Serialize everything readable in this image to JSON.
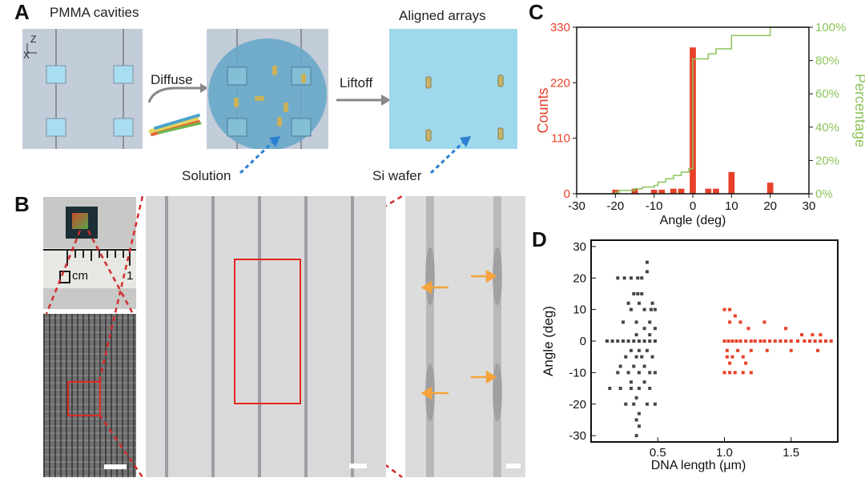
{
  "panel_a": {
    "label": "A",
    "title_left": "PMMA cavities",
    "title_right": "Aligned arrays",
    "axis_z": "Z",
    "axis_x": "X",
    "step1": "Diffuse",
    "step2": "Liftoff",
    "solution_label": "Solution",
    "wafer_label": "Si wafer"
  },
  "panel_b": {
    "label": "B",
    "ruler_unit": "cm",
    "ruler_mark": "1"
  },
  "panel_c": {
    "label": "C"
  },
  "panel_d": {
    "label": "D"
  },
  "colors": {
    "red": "#e8412a",
    "green": "#8cc45a",
    "orange": "#f5a33a",
    "dashed_blue": "#2b7fd0",
    "dashed_red": "#d42b2b"
  },
  "chart_data": [
    {
      "id": "C",
      "type": "bar",
      "xlabel": "Angle (deg)",
      "ylabel": "Counts",
      "y2label": "Percentage",
      "xlim": [
        -30,
        30
      ],
      "ylim": [
        0,
        330
      ],
      "y2lim": [
        0,
        100
      ],
      "xticks": [
        "-30",
        "-20",
        "-10",
        "0",
        "10",
        "20",
        "30"
      ],
      "yticks": [
        "0",
        "110",
        "220",
        "330"
      ],
      "y2ticks": [
        "0%",
        "20%",
        "40%",
        "60%",
        "80%",
        "100%"
      ],
      "bars": [
        {
          "x": -20,
          "y": 8
        },
        {
          "x": -15,
          "y": 10
        },
        {
          "x": -10,
          "y": 8
        },
        {
          "x": -8,
          "y": 8
        },
        {
          "x": -5,
          "y": 10
        },
        {
          "x": -3,
          "y": 10
        },
        {
          "x": 0,
          "y": 290
        },
        {
          "x": 4,
          "y": 10
        },
        {
          "x": 6,
          "y": 10
        },
        {
          "x": 10,
          "y": 43
        },
        {
          "x": 20,
          "y": 22
        }
      ],
      "cumulative": [
        {
          "x": -30,
          "y": 0
        },
        {
          "x": -20,
          "y": 1
        },
        {
          "x": -19,
          "y": 2
        },
        {
          "x": -15,
          "y": 3
        },
        {
          "x": -13,
          "y": 4
        },
        {
          "x": -10,
          "y": 5
        },
        {
          "x": -9,
          "y": 7
        },
        {
          "x": -7,
          "y": 9
        },
        {
          "x": -5,
          "y": 11
        },
        {
          "x": -3,
          "y": 13
        },
        {
          "x": -1,
          "y": 15
        },
        {
          "x": 0,
          "y": 81
        },
        {
          "x": 4,
          "y": 84
        },
        {
          "x": 6,
          "y": 87
        },
        {
          "x": 10,
          "y": 95
        },
        {
          "x": 20,
          "y": 100
        },
        {
          "x": 30,
          "y": 100
        }
      ]
    },
    {
      "id": "D",
      "type": "scatter",
      "xlabel": "DNA length (μm)",
      "ylabel": "Angle (deg)",
      "xlim": [
        0,
        1.85
      ],
      "ylim": [
        -32,
        32
      ],
      "xticks": [
        "0.5",
        "1.0",
        "1.5"
      ],
      "yticks": [
        "30",
        "20",
        "10",
        "0",
        "-10",
        "-20",
        "-30"
      ],
      "series": [
        {
          "color": "#444444",
          "points": [
            [
              0.2,
              20
            ],
            [
              0.25,
              20
            ],
            [
              0.3,
              20
            ],
            [
              0.35,
              20
            ],
            [
              0.38,
              20
            ],
            [
              0.42,
              25
            ],
            [
              0.42,
              22
            ],
            [
              0.32,
              15
            ],
            [
              0.35,
              15
            ],
            [
              0.38,
              15
            ],
            [
              0.28,
              12
            ],
            [
              0.36,
              12
            ],
            [
              0.46,
              12
            ],
            [
              0.3,
              10
            ],
            [
              0.4,
              10
            ],
            [
              0.45,
              10
            ],
            [
              0.48,
              10
            ],
            [
              0.24,
              6
            ],
            [
              0.34,
              6
            ],
            [
              0.44,
              6
            ],
            [
              0.4,
              4
            ],
            [
              0.48,
              4
            ],
            [
              0.34,
              2
            ],
            [
              0.44,
              2
            ],
            [
              0.12,
              0
            ],
            [
              0.16,
              0
            ],
            [
              0.2,
              0
            ],
            [
              0.24,
              0
            ],
            [
              0.28,
              0
            ],
            [
              0.32,
              0
            ],
            [
              0.36,
              0
            ],
            [
              0.4,
              0
            ],
            [
              0.44,
              0
            ],
            [
              0.48,
              0
            ],
            [
              0.3,
              -3
            ],
            [
              0.36,
              -3
            ],
            [
              0.42,
              -3
            ],
            [
              0.26,
              -5
            ],
            [
              0.34,
              -5
            ],
            [
              0.38,
              -5
            ],
            [
              0.46,
              -5
            ],
            [
              0.22,
              -8
            ],
            [
              0.32,
              -8
            ],
            [
              0.4,
              -8
            ],
            [
              0.2,
              -10
            ],
            [
              0.28,
              -10
            ],
            [
              0.36,
              -10
            ],
            [
              0.44,
              -10
            ],
            [
              0.48,
              -10
            ],
            [
              0.3,
              -13
            ],
            [
              0.4,
              -13
            ],
            [
              0.14,
              -15
            ],
            [
              0.22,
              -15
            ],
            [
              0.3,
              -15
            ],
            [
              0.36,
              -15
            ],
            [
              0.44,
              -15
            ],
            [
              0.34,
              -18
            ],
            [
              0.26,
              -20
            ],
            [
              0.32,
              -20
            ],
            [
              0.42,
              -20
            ],
            [
              0.48,
              -20
            ],
            [
              0.36,
              -23
            ],
            [
              0.34,
              -25
            ],
            [
              0.36,
              -27
            ],
            [
              0.34,
              -30
            ]
          ]
        },
        {
          "color": "#e8412a",
          "points": [
            [
              1.0,
              10
            ],
            [
              1.04,
              10
            ],
            [
              1.08,
              8
            ],
            [
              1.12,
              6
            ],
            [
              1.18,
              4
            ],
            [
              1.04,
              6
            ],
            [
              1.3,
              6
            ],
            [
              1.46,
              4
            ],
            [
              1.58,
              2
            ],
            [
              1.66,
              2
            ],
            [
              1.72,
              2
            ],
            [
              1.0,
              0
            ],
            [
              1.03,
              0
            ],
            [
              1.06,
              0
            ],
            [
              1.09,
              0
            ],
            [
              1.12,
              0
            ],
            [
              1.16,
              0
            ],
            [
              1.2,
              0
            ],
            [
              1.23,
              0
            ],
            [
              1.27,
              0
            ],
            [
              1.3,
              0
            ],
            [
              1.34,
              0
            ],
            [
              1.38,
              0
            ],
            [
              1.42,
              0
            ],
            [
              1.46,
              0
            ],
            [
              1.5,
              0
            ],
            [
              1.55,
              0
            ],
            [
              1.6,
              0
            ],
            [
              1.64,
              0
            ],
            [
              1.68,
              0
            ],
            [
              1.72,
              0
            ],
            [
              1.76,
              0
            ],
            [
              1.8,
              0
            ],
            [
              1.02,
              -3
            ],
            [
              1.1,
              -3
            ],
            [
              1.2,
              -3
            ],
            [
              1.32,
              -3
            ],
            [
              1.5,
              -3
            ],
            [
              1.7,
              -3
            ],
            [
              1.02,
              -5
            ],
            [
              1.06,
              -5
            ],
            [
              1.14,
              -5
            ],
            [
              1.04,
              -7
            ],
            [
              1.16,
              -7
            ],
            [
              1.0,
              -10
            ],
            [
              1.04,
              -10
            ],
            [
              1.08,
              -10
            ],
            [
              1.14,
              -10
            ],
            [
              1.2,
              -10
            ]
          ]
        }
      ]
    }
  ]
}
